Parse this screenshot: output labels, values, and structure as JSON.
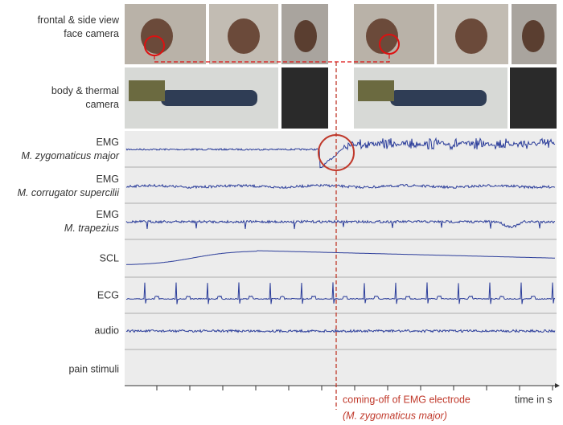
{
  "camera_rows": [
    {
      "lines": [
        "frontal & side view",
        "face camera"
      ]
    },
    {
      "lines": [
        "body & thermal",
        "camera"
      ]
    }
  ],
  "signal_rows": [
    {
      "lines": [
        "EMG",
        "M. zygomaticus major"
      ]
    },
    {
      "lines": [
        "EMG",
        "M. corrugator supercilii"
      ]
    },
    {
      "lines": [
        "EMG",
        "M. trapezius"
      ]
    },
    {
      "lines": [
        "SCL"
      ]
    },
    {
      "lines": [
        "ECG"
      ]
    },
    {
      "lines": [
        "audio"
      ]
    },
    {
      "lines": [
        "pain stimuli"
      ]
    }
  ],
  "annotation": {
    "lines": [
      "coming-off of EMG electrode",
      "(M. zygomaticus major)"
    ]
  },
  "time_axis_label": "time in s"
}
